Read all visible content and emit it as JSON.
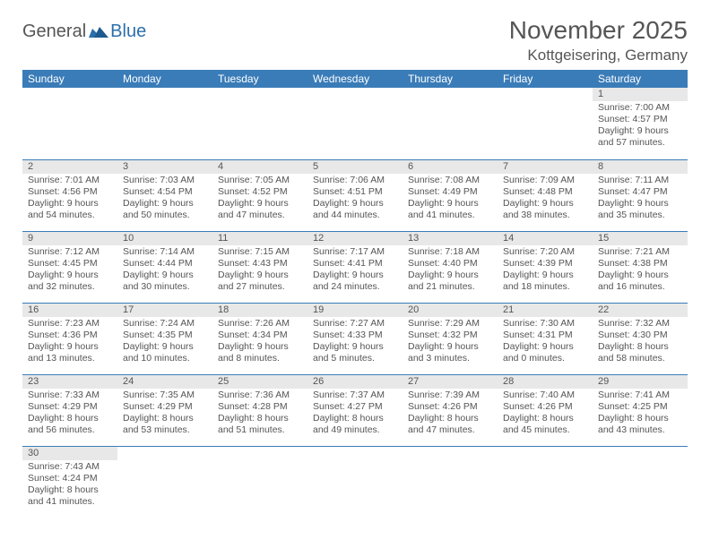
{
  "logo": {
    "part1": "General",
    "part2": "Blue"
  },
  "title": "November 2025",
  "location": "Kottgeisering, Germany",
  "colors": {
    "header_bg": "#3a7cb8",
    "header_fg": "#ffffff",
    "daynum_bg": "#e8e8e8",
    "rule": "#3a7cb8",
    "logo_blue": "#2b6fab",
    "text": "#555555"
  },
  "weekdays": [
    "Sunday",
    "Monday",
    "Tuesday",
    "Wednesday",
    "Thursday",
    "Friday",
    "Saturday"
  ],
  "weeks": [
    [
      {
        "n": "",
        "l1": "",
        "l2": "",
        "l3": "",
        "l4": ""
      },
      {
        "n": "",
        "l1": "",
        "l2": "",
        "l3": "",
        "l4": ""
      },
      {
        "n": "",
        "l1": "",
        "l2": "",
        "l3": "",
        "l4": ""
      },
      {
        "n": "",
        "l1": "",
        "l2": "",
        "l3": "",
        "l4": ""
      },
      {
        "n": "",
        "l1": "",
        "l2": "",
        "l3": "",
        "l4": ""
      },
      {
        "n": "",
        "l1": "",
        "l2": "",
        "l3": "",
        "l4": ""
      },
      {
        "n": "1",
        "l1": "Sunrise: 7:00 AM",
        "l2": "Sunset: 4:57 PM",
        "l3": "Daylight: 9 hours",
        "l4": "and 57 minutes."
      }
    ],
    [
      {
        "n": "2",
        "l1": "Sunrise: 7:01 AM",
        "l2": "Sunset: 4:56 PM",
        "l3": "Daylight: 9 hours",
        "l4": "and 54 minutes."
      },
      {
        "n": "3",
        "l1": "Sunrise: 7:03 AM",
        "l2": "Sunset: 4:54 PM",
        "l3": "Daylight: 9 hours",
        "l4": "and 50 minutes."
      },
      {
        "n": "4",
        "l1": "Sunrise: 7:05 AM",
        "l2": "Sunset: 4:52 PM",
        "l3": "Daylight: 9 hours",
        "l4": "and 47 minutes."
      },
      {
        "n": "5",
        "l1": "Sunrise: 7:06 AM",
        "l2": "Sunset: 4:51 PM",
        "l3": "Daylight: 9 hours",
        "l4": "and 44 minutes."
      },
      {
        "n": "6",
        "l1": "Sunrise: 7:08 AM",
        "l2": "Sunset: 4:49 PM",
        "l3": "Daylight: 9 hours",
        "l4": "and 41 minutes."
      },
      {
        "n": "7",
        "l1": "Sunrise: 7:09 AM",
        "l2": "Sunset: 4:48 PM",
        "l3": "Daylight: 9 hours",
        "l4": "and 38 minutes."
      },
      {
        "n": "8",
        "l1": "Sunrise: 7:11 AM",
        "l2": "Sunset: 4:47 PM",
        "l3": "Daylight: 9 hours",
        "l4": "and 35 minutes."
      }
    ],
    [
      {
        "n": "9",
        "l1": "Sunrise: 7:12 AM",
        "l2": "Sunset: 4:45 PM",
        "l3": "Daylight: 9 hours",
        "l4": "and 32 minutes."
      },
      {
        "n": "10",
        "l1": "Sunrise: 7:14 AM",
        "l2": "Sunset: 4:44 PM",
        "l3": "Daylight: 9 hours",
        "l4": "and 30 minutes."
      },
      {
        "n": "11",
        "l1": "Sunrise: 7:15 AM",
        "l2": "Sunset: 4:43 PM",
        "l3": "Daylight: 9 hours",
        "l4": "and 27 minutes."
      },
      {
        "n": "12",
        "l1": "Sunrise: 7:17 AM",
        "l2": "Sunset: 4:41 PM",
        "l3": "Daylight: 9 hours",
        "l4": "and 24 minutes."
      },
      {
        "n": "13",
        "l1": "Sunrise: 7:18 AM",
        "l2": "Sunset: 4:40 PM",
        "l3": "Daylight: 9 hours",
        "l4": "and 21 minutes."
      },
      {
        "n": "14",
        "l1": "Sunrise: 7:20 AM",
        "l2": "Sunset: 4:39 PM",
        "l3": "Daylight: 9 hours",
        "l4": "and 18 minutes."
      },
      {
        "n": "15",
        "l1": "Sunrise: 7:21 AM",
        "l2": "Sunset: 4:38 PM",
        "l3": "Daylight: 9 hours",
        "l4": "and 16 minutes."
      }
    ],
    [
      {
        "n": "16",
        "l1": "Sunrise: 7:23 AM",
        "l2": "Sunset: 4:36 PM",
        "l3": "Daylight: 9 hours",
        "l4": "and 13 minutes."
      },
      {
        "n": "17",
        "l1": "Sunrise: 7:24 AM",
        "l2": "Sunset: 4:35 PM",
        "l3": "Daylight: 9 hours",
        "l4": "and 10 minutes."
      },
      {
        "n": "18",
        "l1": "Sunrise: 7:26 AM",
        "l2": "Sunset: 4:34 PM",
        "l3": "Daylight: 9 hours",
        "l4": "and 8 minutes."
      },
      {
        "n": "19",
        "l1": "Sunrise: 7:27 AM",
        "l2": "Sunset: 4:33 PM",
        "l3": "Daylight: 9 hours",
        "l4": "and 5 minutes."
      },
      {
        "n": "20",
        "l1": "Sunrise: 7:29 AM",
        "l2": "Sunset: 4:32 PM",
        "l3": "Daylight: 9 hours",
        "l4": "and 3 minutes."
      },
      {
        "n": "21",
        "l1": "Sunrise: 7:30 AM",
        "l2": "Sunset: 4:31 PM",
        "l3": "Daylight: 9 hours",
        "l4": "and 0 minutes."
      },
      {
        "n": "22",
        "l1": "Sunrise: 7:32 AM",
        "l2": "Sunset: 4:30 PM",
        "l3": "Daylight: 8 hours",
        "l4": "and 58 minutes."
      }
    ],
    [
      {
        "n": "23",
        "l1": "Sunrise: 7:33 AM",
        "l2": "Sunset: 4:29 PM",
        "l3": "Daylight: 8 hours",
        "l4": "and 56 minutes."
      },
      {
        "n": "24",
        "l1": "Sunrise: 7:35 AM",
        "l2": "Sunset: 4:29 PM",
        "l3": "Daylight: 8 hours",
        "l4": "and 53 minutes."
      },
      {
        "n": "25",
        "l1": "Sunrise: 7:36 AM",
        "l2": "Sunset: 4:28 PM",
        "l3": "Daylight: 8 hours",
        "l4": "and 51 minutes."
      },
      {
        "n": "26",
        "l1": "Sunrise: 7:37 AM",
        "l2": "Sunset: 4:27 PM",
        "l3": "Daylight: 8 hours",
        "l4": "and 49 minutes."
      },
      {
        "n": "27",
        "l1": "Sunrise: 7:39 AM",
        "l2": "Sunset: 4:26 PM",
        "l3": "Daylight: 8 hours",
        "l4": "and 47 minutes."
      },
      {
        "n": "28",
        "l1": "Sunrise: 7:40 AM",
        "l2": "Sunset: 4:26 PM",
        "l3": "Daylight: 8 hours",
        "l4": "and 45 minutes."
      },
      {
        "n": "29",
        "l1": "Sunrise: 7:41 AM",
        "l2": "Sunset: 4:25 PM",
        "l3": "Daylight: 8 hours",
        "l4": "and 43 minutes."
      }
    ],
    [
      {
        "n": "30",
        "l1": "Sunrise: 7:43 AM",
        "l2": "Sunset: 4:24 PM",
        "l3": "Daylight: 8 hours",
        "l4": "and 41 minutes."
      },
      {
        "n": "",
        "l1": "",
        "l2": "",
        "l3": "",
        "l4": ""
      },
      {
        "n": "",
        "l1": "",
        "l2": "",
        "l3": "",
        "l4": ""
      },
      {
        "n": "",
        "l1": "",
        "l2": "",
        "l3": "",
        "l4": ""
      },
      {
        "n": "",
        "l1": "",
        "l2": "",
        "l3": "",
        "l4": ""
      },
      {
        "n": "",
        "l1": "",
        "l2": "",
        "l3": "",
        "l4": ""
      },
      {
        "n": "",
        "l1": "",
        "l2": "",
        "l3": "",
        "l4": ""
      }
    ]
  ]
}
